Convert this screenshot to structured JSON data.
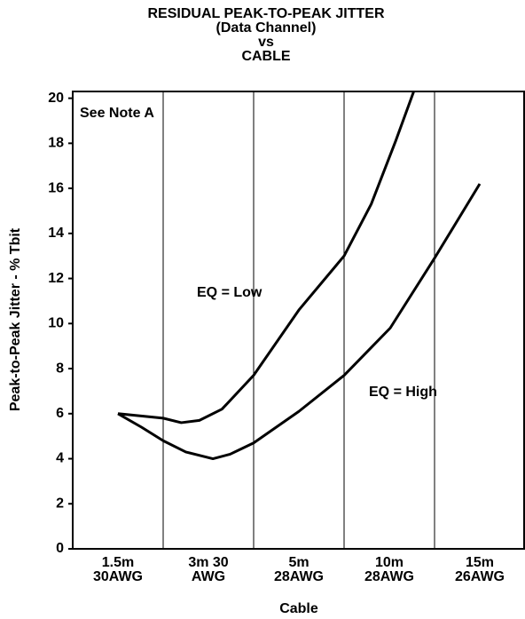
{
  "chart_data": {
    "type": "line",
    "title": [
      "RESIDUAL PEAK-TO-PEAK JITTER",
      "(Data Channel)",
      "vs",
      "CABLE"
    ],
    "x_label": "Cable",
    "y_label": "Peak-to-Peak Jitter - % Tbit",
    "categories": [
      [
        "1.5m",
        "30AWG"
      ],
      [
        "3m 30",
        "AWG"
      ],
      [
        "5m",
        "28AWG"
      ],
      [
        "10m",
        "28AWG"
      ],
      [
        "15m",
        "26AWG"
      ]
    ],
    "xlim": [
      -0.5,
      4.5
    ],
    "ylim": [
      0,
      20.3
    ],
    "yticks": [
      0,
      2,
      4,
      6,
      8,
      10,
      12,
      14,
      16,
      18,
      20
    ],
    "vertical_grid": true,
    "annotations": [
      "See Note A",
      "EQ = Low",
      "EQ = High"
    ],
    "series": [
      {
        "name": "EQ = Low",
        "color": "#000000",
        "x": [
          0,
          0.5,
          0.7,
          0.9,
          1.15,
          1.5,
          2.0,
          2.5,
          2.8,
          3.07,
          3.27
        ],
        "values": [
          6.0,
          5.8,
          5.6,
          5.7,
          6.2,
          7.7,
          10.6,
          13.0,
          15.3,
          18.1,
          20.3
        ]
      },
      {
        "name": "EQ = High",
        "color": "#000000",
        "x": [
          0,
          0.26,
          0.5,
          0.75,
          1.05,
          1.24,
          1.5,
          2.0,
          2.5,
          3.01,
          3.5,
          4.0
        ],
        "values": [
          6.0,
          5.4,
          4.8,
          4.3,
          4.0,
          4.2,
          4.7,
          6.1,
          7.7,
          9.8,
          12.9,
          16.2
        ]
      }
    ]
  }
}
